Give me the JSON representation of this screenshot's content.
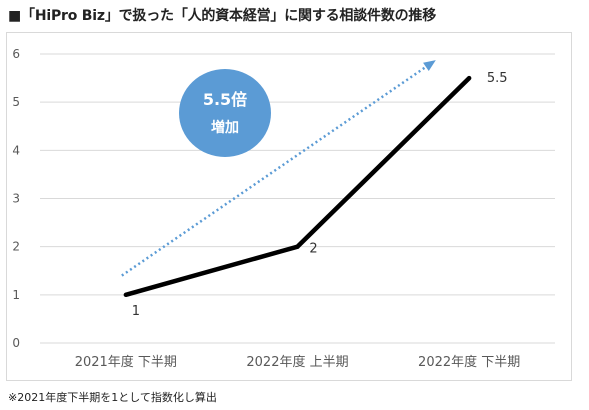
{
  "page": {
    "title": "■「HiPro Biz」で扱った「人的資本経営」に関する相談件数の推移",
    "footnote": "※2021年度下半期を1として指数化し算出"
  },
  "colors": {
    "line": "#000000",
    "trend_arrow": "#5b9bd5",
    "badge": "#5b9bd5",
    "grid": "#d9d9d9",
    "tick_text": "#595959"
  },
  "chart_data": {
    "type": "line",
    "categories": [
      "2021年度 下半期",
      "2022年度 上半期",
      "2022年度 下半期"
    ],
    "series": [
      {
        "values": [
          1,
          2,
          5.5
        ],
        "data_labels": [
          "1",
          "2",
          "5.5"
        ]
      }
    ],
    "ylim": [
      0,
      6
    ],
    "yticks": [
      "0",
      "1",
      "2",
      "3",
      "4",
      "5",
      "6"
    ],
    "grid": true,
    "trend_arrow": {
      "style": "dotted",
      "from_y": 1.4,
      "to_y": 5.85
    },
    "annotation": {
      "line1": "5.5倍",
      "line2": "増加"
    }
  }
}
